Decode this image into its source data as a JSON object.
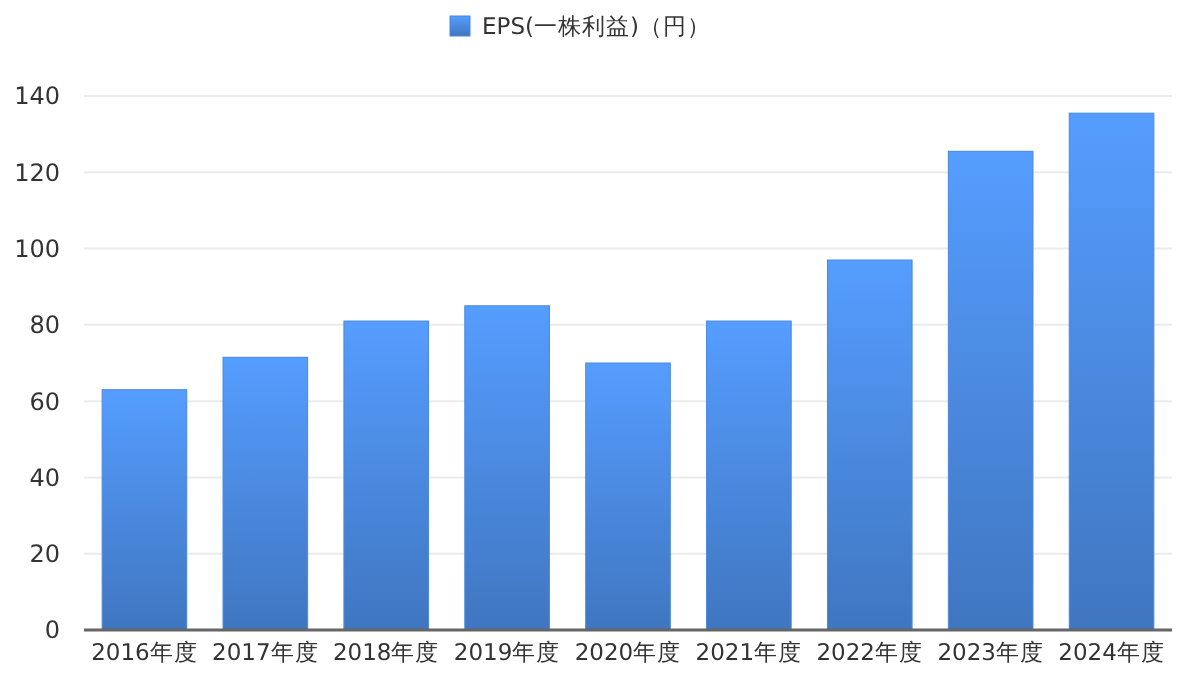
{
  "chart_data": {
    "type": "bar",
    "categories": [
      "2016年度",
      "2017年度",
      "2018年度",
      "2019年度",
      "2020年度",
      "2021年度",
      "2022年度",
      "2023年度",
      "2024年度"
    ],
    "series": [
      {
        "name": "EPS(一株利益)（円）",
        "color": "#4a88dd",
        "values": [
          63,
          71.5,
          81,
          85,
          70,
          81,
          97,
          125.5,
          135.5
        ]
      }
    ],
    "ylim": [
      0,
      140
    ],
    "yticks": [
      0,
      20,
      40,
      60,
      80,
      100,
      120,
      140
    ],
    "grid": "y",
    "legend": "top"
  }
}
